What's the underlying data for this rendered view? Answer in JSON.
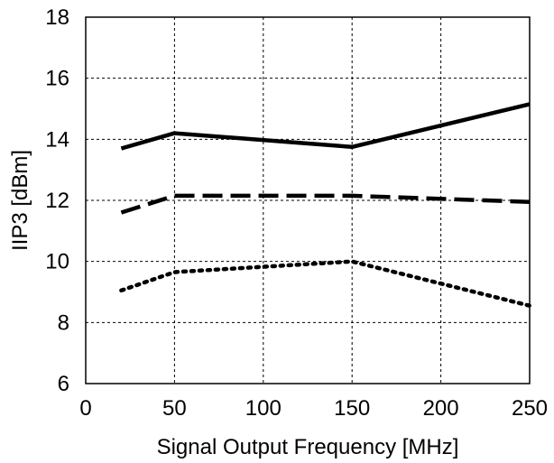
{
  "chart_data": {
    "type": "line",
    "title": "",
    "xlabel": "Signal Output Frequency [MHz]",
    "ylabel": "IIP3 [dBm]",
    "xlim": [
      0,
      250
    ],
    "ylim": [
      6,
      18
    ],
    "xticks": [
      0,
      50,
      100,
      150,
      200,
      250
    ],
    "yticks": [
      6,
      8,
      10,
      12,
      14,
      16,
      18
    ],
    "grid": true,
    "legend": "none",
    "series": [
      {
        "style": "solid",
        "x": [
          20,
          50,
          150,
          250
        ],
        "y": [
          13.7,
          14.2,
          13.75,
          15.15
        ]
      },
      {
        "style": "dashed",
        "x": [
          20,
          50,
          150,
          250
        ],
        "y": [
          11.6,
          12.15,
          12.15,
          11.95
        ]
      },
      {
        "style": "dotted",
        "x": [
          20,
          50,
          150,
          250
        ],
        "y": [
          9.05,
          9.65,
          10.0,
          8.55
        ]
      }
    ],
    "colors": {
      "line": "#000000",
      "grid": "#000000",
      "background": "#ffffff"
    }
  }
}
